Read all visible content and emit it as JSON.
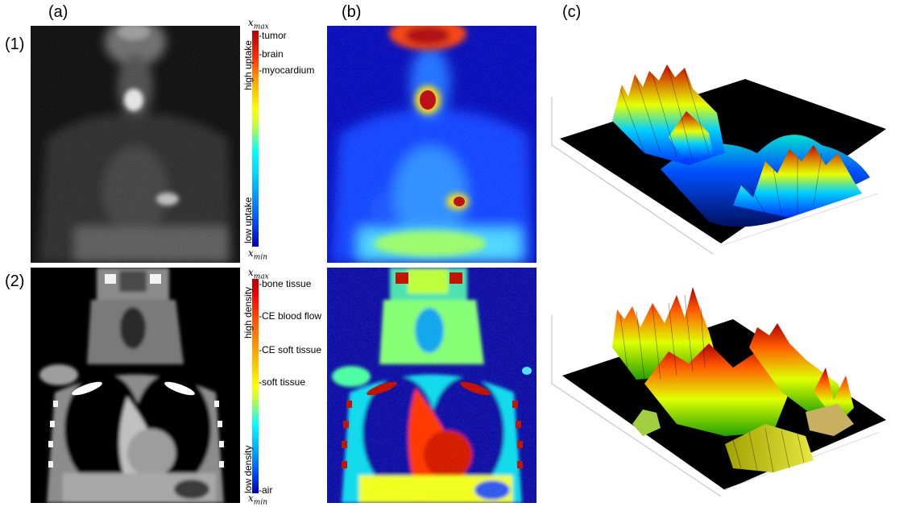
{
  "columns": {
    "a": "(a)",
    "b": "(b)",
    "c": "(c)"
  },
  "rows": {
    "r1": "(1)",
    "r2": "(2)"
  },
  "pet_colorbar": {
    "max_label": "x",
    "max_sub": "max",
    "min_label": "x",
    "min_sub": "min",
    "high_axis": "high uptake",
    "low_axis": "low uptake",
    "ticks": [
      "-tumor",
      "-brain",
      "-myocardium"
    ]
  },
  "ct_colorbar": {
    "max_label": "x",
    "max_sub": "max",
    "min_label": "x",
    "min_sub": "min",
    "high_axis": "high density",
    "low_axis": "low density",
    "ticks": [
      "-bone tissue",
      "-CE blood flow",
      "-CE soft tissue",
      "-soft tissue",
      "-air"
    ]
  },
  "colors": {
    "jet_blue": "#0000b4",
    "jet_red": "#a00000",
    "background_dark": "#000000"
  }
}
